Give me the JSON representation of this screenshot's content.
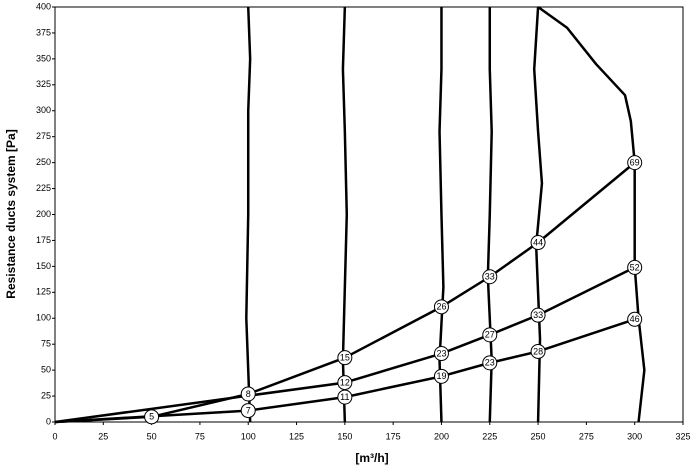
{
  "chart_data": {
    "type": "line",
    "y_label": "Resistance ducts system [Pa]",
    "x_label": "[m³/h]",
    "xlim": [
      0,
      325
    ],
    "ylim": [
      0,
      400
    ],
    "xticks": [
      0,
      25,
      50,
      75,
      100,
      125,
      150,
      175,
      200,
      225,
      250,
      275,
      300,
      325
    ],
    "yticks": [
      0,
      25,
      50,
      75,
      100,
      125,
      150,
      175,
      200,
      225,
      250,
      275,
      300,
      325,
      350,
      375,
      400
    ],
    "grid": false,
    "series": [
      {
        "color": "#000000",
        "x": [
          0,
          50,
          100,
          150,
          200,
          225,
          250,
          300
        ],
        "values": [
          0,
          5,
          27,
          62,
          111,
          140,
          173,
          250
        ],
        "point_labels": [
          null,
          "5",
          "8",
          "15",
          "26",
          "33",
          "44",
          "69"
        ]
      },
      {
        "color": "#000000",
        "x": [
          0,
          150,
          200,
          225,
          250,
          300
        ],
        "values": [
          0,
          38,
          66,
          84,
          103,
          149
        ],
        "point_labels": [
          null,
          "12",
          "23",
          "27",
          "33",
          "52"
        ]
      },
      {
        "color": "#000000",
        "x": [
          0,
          100,
          150,
          200,
          225,
          250,
          300
        ],
        "values": [
          0,
          11,
          24,
          44,
          57,
          68,
          99
        ],
        "point_labels": [
          null,
          "7",
          "11",
          "19",
          "23",
          "28",
          "46"
        ]
      }
    ],
    "fan_curves": [
      {
        "color": "#000000",
        "x": [
          101,
          100,
          99,
          100,
          100,
          101,
          100
        ],
        "values": [
          0,
          50,
          100,
          200,
          300,
          350,
          400
        ]
      },
      {
        "color": "#000000",
        "x": [
          150,
          149,
          150,
          151,
          150,
          149,
          150
        ],
        "values": [
          0,
          60,
          130,
          200,
          280,
          340,
          400
        ]
      },
      {
        "color": "#000000",
        "x": [
          200,
          199,
          201,
          200,
          199,
          200,
          200
        ],
        "values": [
          0,
          60,
          130,
          200,
          280,
          340,
          400
        ]
      },
      {
        "color": "#000000",
        "x": [
          225,
          226,
          224,
          225,
          226,
          225,
          225
        ],
        "values": [
          0,
          60,
          140,
          200,
          280,
          340,
          400
        ]
      },
      {
        "color": "#000000",
        "x": [
          250,
          251,
          249,
          252,
          250,
          248,
          250
        ],
        "values": [
          0,
          80,
          170,
          230,
          280,
          340,
          400
        ]
      },
      {
        "color": "#000000",
        "x": [
          302,
          305,
          302,
          300,
          300,
          298,
          295,
          280,
          265,
          250
        ],
        "values": [
          0,
          50,
          100,
          150,
          250,
          290,
          315,
          345,
          380,
          400
        ]
      }
    ]
  }
}
